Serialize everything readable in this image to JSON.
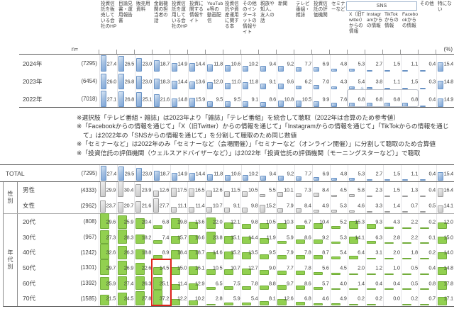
{
  "labels": {
    "n_eq": "n=",
    "percent": "(%)",
    "sns": "SNS",
    "mark": "※"
  },
  "colors": {
    "bar_blue": "#7da6d8",
    "bar_gray": "#d9d9d9",
    "bar_green": "#92d050",
    "highlight_red": "#e0251c",
    "rule_gray": "#595959"
  },
  "notes": [
    "※選択肢「テレビ番組・雑誌」は2023年より「雑誌」「テレビ番組」を統合して聴取（2022年は合算のため参考値）",
    "※「Facebookからの情報を通じて」「X（旧Twitter）からの情報を通じて」「Instagramからの情報を通じて」「TikTokからの情報を通じて」は2022年の「SNSからの情報を通じて」を分割して聴取のため同じ数値",
    "※「セミナーなど」は2022年のみ「セミナーなど（会場開催）」「セミナーなど（オンライン開催）」に分割して聴取のため合算値",
    "※「投資信託の評価機関（ウェルスアドバイザーなど）」は2022年「投資信託の評価機関（モーニングスターなど）」で聴取"
  ],
  "chart_data": {
    "type": "table",
    "unit": "(%)",
    "columns": [
      "投資信託を販売している会社のHP",
      "目論見書・運用報告書",
      "販売用資料",
      "金融機関の担当者の話",
      "投資信託を運用している会社のHP",
      "投資に関する情報サイト",
      "YouTube等の動画配信",
      "投資信託や資産運用に関する本",
      "その他のインターネットの情報サイト",
      "親族や知人、友人の話",
      "新聞",
      "テレビ番組・雑誌",
      "投資信託の評価機関",
      "セミナーなど",
      "X（旧Twitter）からの情報",
      "Instagramからの情報",
      "TikTokからの情報",
      "Facebookからの情報",
      "その他",
      "特にない"
    ],
    "sns_group_column_indexes": [
      14,
      15,
      16,
      17
    ],
    "year_rows": [
      {
        "label": "2024年",
        "n": "(7295)",
        "values": [
          "27.4",
          "26.5",
          "23.0",
          "18.7",
          "14.9",
          "14.4",
          "11.8",
          "10.6",
          "10.2",
          "9.4",
          "9.2",
          "7.7",
          "6.9",
          "4.8",
          "5.3",
          "2.7",
          "1.5",
          "1.1",
          "0.4",
          "15.4"
        ]
      },
      {
        "label": "2023年",
        "n": "(6454)",
        "mark_col": 14,
        "values": [
          "26.0",
          "26.8",
          "23.0",
          "18.3",
          "14.4",
          "13.6",
          "12.0",
          "11.0",
          "11.8",
          "9.1",
          "9.6",
          "6.2",
          "7.0",
          "4.3",
          "5.4",
          "3.8",
          "1.1",
          "1.5",
          "0.3",
          "14.8"
        ]
      },
      {
        "label": "2022年",
        "n": "(7018)",
        "sns_outline": true,
        "values": [
          "27.1",
          "26.8",
          "25.1",
          "21.6",
          "14.8",
          "15.9",
          "9.5",
          "9.5",
          "9.1",
          "8.6",
          "10.8",
          "10.5",
          "9.9",
          "7.6",
          "6.8",
          "6.8",
          "6.8",
          "6.8",
          "0.4",
          "14.9"
        ]
      }
    ],
    "total_row": {
      "label": "TOTAL",
      "n": "(7295)",
      "values": [
        "27.4",
        "26.5",
        "23.0",
        "18.7",
        "14.9",
        "14.4",
        "11.8",
        "10.6",
        "10.2",
        "9.4",
        "9.2",
        "7.7",
        "6.9",
        "4.8",
        "5.3",
        "2.7",
        "1.5",
        "1.1",
        "0.4",
        "15.4"
      ]
    },
    "groups": [
      {
        "category": "性別",
        "rows": [
          {
            "label": "男性",
            "n": "(4333)",
            "values": [
              "29.9",
              "30.4",
              "23.9",
              "12.6",
              "17.5",
              "16.5",
              "12.6",
              "11.5",
              "10.5",
              "5.5",
              "10.1",
              "7.3",
              "8.4",
              "4.5",
              "5.8",
              "2.3",
              "1.5",
              "1.3",
              "0.4",
              "16.4"
            ]
          },
          {
            "label": "女性",
            "n": "(2962)",
            "values": [
              "23.7",
              "20.7",
              "21.6",
              "27.7",
              "11.1",
              "11.4",
              "10.7",
              "9.1",
              "9.8",
              "15.2",
              "7.9",
              "8.4",
              "4.9",
              "5.3",
              "4.6",
              "3.3",
              "1.4",
              "0.7",
              "0.5",
              "14.1"
            ]
          }
        ]
      },
      {
        "category": "年代別",
        "highlight": {
          "column_index": 3,
          "row_labels": [
            "50代",
            "60代",
            "70代"
          ]
        },
        "rows": [
          {
            "label": "20代",
            "n": "(808)",
            "values": [
              "29.6",
              "25.9",
              "20.4",
              "6.8",
              "19.8",
              "13.6",
              "22.0",
              "12.1",
              "9.8",
              "10.5",
              "10.3",
              "6.7",
              "10.4",
              "5.2",
              "15.3",
              "9.3",
              "4.3",
              "2.2",
              "0.2",
              "12.0"
            ]
          },
          {
            "label": "30代",
            "n": "(967)",
            "values": [
              "27.3",
              "28.3",
              "18.2",
              "7.4",
              "15.7",
              "16.6",
              "23.8",
              "15.1",
              "14.4",
              "11.9",
              "5.9",
              "8.6",
              "9.2",
              "5.3",
              "14.1",
              "6.3",
              "2.8",
              "2.2",
              "0.1",
              "15.0"
            ]
          },
          {
            "label": "40代",
            "n": "(1242)",
            "values": [
              "32.6",
              "26.3",
              "18.8",
              "8.9",
              "18.4",
              "18.7",
              "14.6",
              "15.2",
              "13.5",
              "9.5",
              "7.9",
              "7.8",
              "8.7",
              "5.4",
              "6.4",
              "3.1",
              "2.0",
              "1.8",
              "0.2",
              "14.0"
            ]
          },
          {
            "label": "50代",
            "n": "(1301)",
            "values": [
              "29.7",
              "26.9",
              "22.6",
              "14.5",
              "15.0",
              "16.1",
              "10.5",
              "10.7",
              "12.7",
              "9.0",
              "7.7",
              "7.8",
              "5.6",
              "4.5",
              "2.0",
              "1.2",
              "1.0",
              "0.5",
              "0.4",
              "14.8"
            ]
          },
          {
            "label": "60代",
            "n": "(1392)",
            "values": [
              "25.9",
              "27.4",
              "26.3",
              "25.1",
              "11.4",
              "12.9",
              "6.5",
              "7.5",
              "7.8",
              "8.8",
              "9.7",
              "8.6",
              "5.7",
              "4.0",
              "1.4",
              "0.4",
              "0.4",
              "0.5",
              "0.8",
              "17.8"
            ]
          },
          {
            "label": "70代",
            "n": "(1585)",
            "values": [
              "21.5",
              "24.5",
              "27.8",
              "37.2",
              "12.2",
              "10.2",
              "2.8",
              "5.9",
              "5.4",
              "8.1",
              "12.6",
              "6.8",
              "4.6",
              "4.9",
              "0.2",
              "0.2",
              "0.0",
              "0.2",
              "0.7",
              "17.1"
            ]
          }
        ]
      }
    ]
  }
}
